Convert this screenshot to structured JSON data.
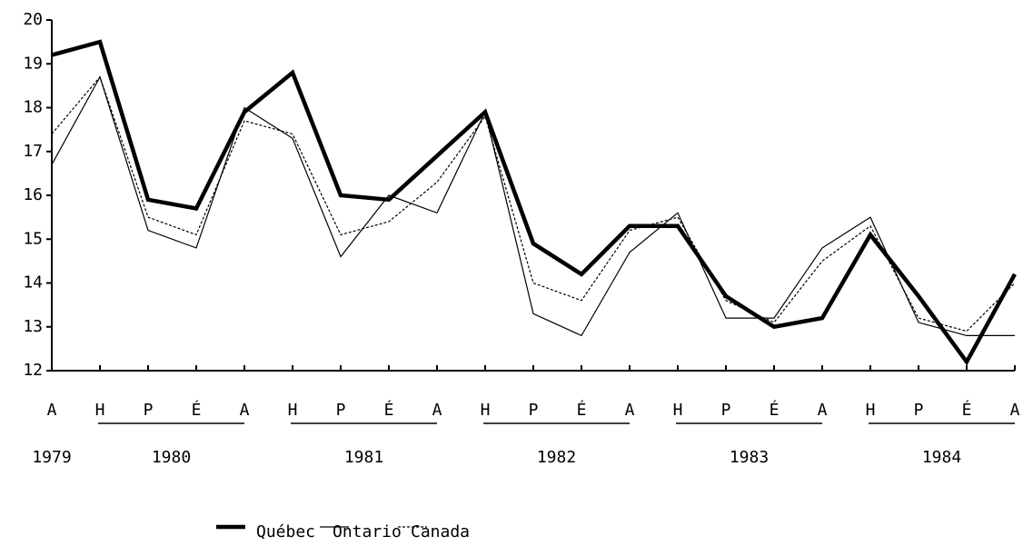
{
  "chart_data": {
    "type": "line",
    "categories": [
      "A",
      "H",
      "P",
      "É",
      "A",
      "H",
      "P",
      "É",
      "A",
      "H",
      "P",
      "É",
      "A",
      "H",
      "P",
      "É",
      "A",
      "H",
      "P",
      "É",
      "A"
    ],
    "years": [
      "1979",
      "1980",
      "1981",
      "1982",
      "1983",
      "1984"
    ],
    "series": [
      {
        "name": "Québec",
        "color": "#000000",
        "style": "thick",
        "values": [
          19.2,
          19.5,
          15.9,
          15.7,
          17.9,
          18.8,
          16.0,
          15.9,
          16.9,
          17.9,
          14.9,
          14.2,
          15.3,
          15.3,
          13.7,
          13.0,
          13.2,
          15.1,
          13.7,
          12.2,
          14.2
        ]
      },
      {
        "name": "Ontario",
        "color": "#000000",
        "style": "thin",
        "values": [
          16.7,
          18.7,
          15.2,
          14.8,
          18.0,
          17.3,
          14.6,
          16.0,
          15.6,
          17.9,
          13.3,
          12.8,
          14.7,
          15.6,
          13.2,
          13.2,
          14.8,
          15.5,
          13.1,
          12.8,
          12.8
        ]
      },
      {
        "name": "Canada",
        "color": "#000000",
        "style": "dashed",
        "values": [
          17.4,
          18.7,
          15.5,
          15.1,
          17.7,
          17.4,
          15.1,
          15.4,
          16.3,
          17.8,
          14.0,
          13.6,
          15.2,
          15.5,
          13.6,
          13.1,
          14.5,
          15.3,
          13.2,
          12.9,
          14.0
        ]
      }
    ],
    "ylim": [
      12,
      20
    ],
    "yticks": [
      12,
      13,
      14,
      15,
      16,
      17,
      18,
      19,
      20
    ],
    "grid": false,
    "legend": "bottom"
  }
}
